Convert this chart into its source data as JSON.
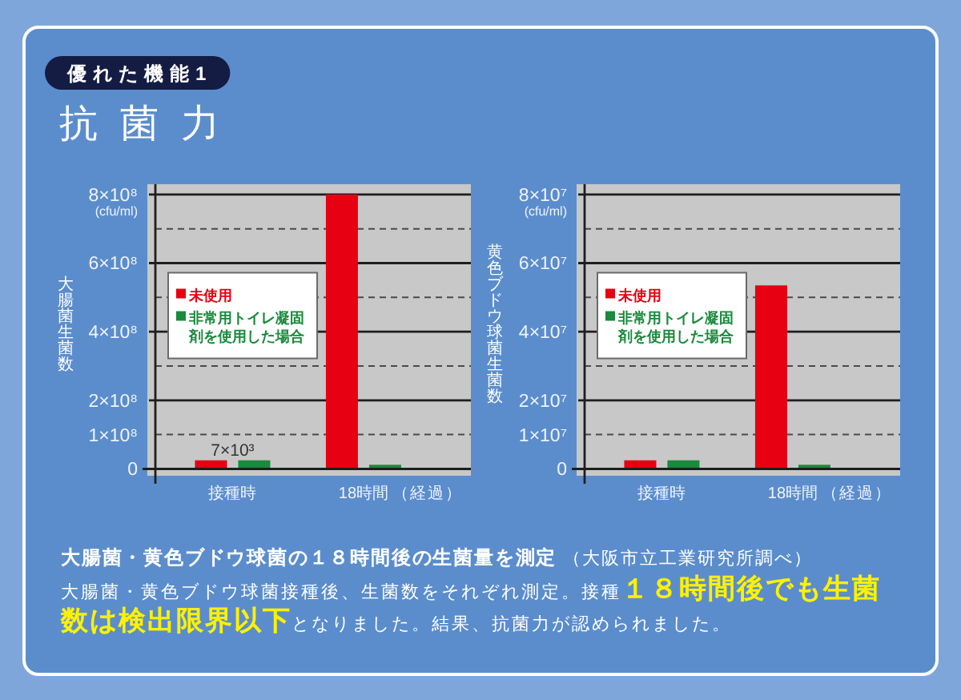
{
  "chart_data": [
    {
      "type": "other",
      "title": "抗菌力",
      "annotations": [
        "優れた機能1"
      ]
    },
    {
      "type": "bar",
      "categories": [
        "接種時",
        "18時間"
      ],
      "xlabel": "（経過）",
      "ylabel": "大腸菌生菌数",
      "series": [
        {
          "name": "未使用",
          "color": "#e60012",
          "values": [
            25000000,
            800000000
          ]
        },
        {
          "name": "非常用トイレ凝固剤を使用した場合",
          "color": "#1a8a3c",
          "values": [
            25000000,
            12000000
          ]
        }
      ],
      "ylim": [
        -20000000,
        830000000
      ],
      "yticks": [
        0,
        {
          "value": 100000000,
          "label": "1×10⁸"
        },
        {
          "value": 200000000,
          "label": "2×10⁸"
        },
        {
          "value": 300000000,
          "label": null
        },
        {
          "value": 400000000,
          "label": "4×10⁸"
        },
        {
          "value": 500000000,
          "label": null
        },
        {
          "value": 600000000,
          "label": "6×10⁸"
        },
        {
          "value": 700000000,
          "label": null
        },
        {
          "value": 800000000,
          "label": "8×10⁸"
        }
      ],
      "grid": "y",
      "legend": "left",
      "annotations": [
        "(cfu/ml)",
        {
          "text": "7×10³",
          "x": "接種時",
          "y": 25000000
        }
      ]
    },
    {
      "type": "bar",
      "categories": [
        "接種時",
        "18時間"
      ],
      "xlabel": "（経過）",
      "ylabel": "黄色ブドウ球菌生菌数",
      "series": [
        {
          "name": "未使用",
          "color": "#e60012",
          "values": [
            2500000,
            53500000
          ]
        },
        {
          "name": "非常用トイレ凝固剤を使用した場合",
          "color": "#1a8a3c",
          "values": [
            2500000,
            1200000
          ]
        }
      ],
      "ylim": [
        -2000000,
        83000000
      ],
      "yticks": [
        0,
        {
          "value": 10000000,
          "label": "1×10⁷"
        },
        {
          "value": 20000000,
          "label": "2×10⁷"
        },
        {
          "value": 30000000,
          "label": null
        },
        {
          "value": 40000000,
          "label": "4×10⁷"
        },
        {
          "value": 50000000,
          "label": null
        },
        {
          "value": 60000000,
          "label": "6×10⁷"
        },
        {
          "value": 70000000,
          "label": null
        },
        {
          "value": 80000000,
          "label": "8×10⁷"
        }
      ],
      "grid": "y",
      "legend": "left",
      "annotations": [
        "(cfu/ml)"
      ]
    },
    {
      "type": "other",
      "title": "大腸菌・黄色ブドウ球菌の１８時間後の生菌量を測定",
      "subtitle": "（大阪市立工業研究所調べ）",
      "annotations": [
        "大腸菌・黄色ブドウ球菌接種後、生菌数をそれぞれ測定。接種",
        "１８時間後でも生菌",
        "数は検出限界以下",
        "となりました。結果、抗菌力が認められました。"
      ]
    }
  ]
}
